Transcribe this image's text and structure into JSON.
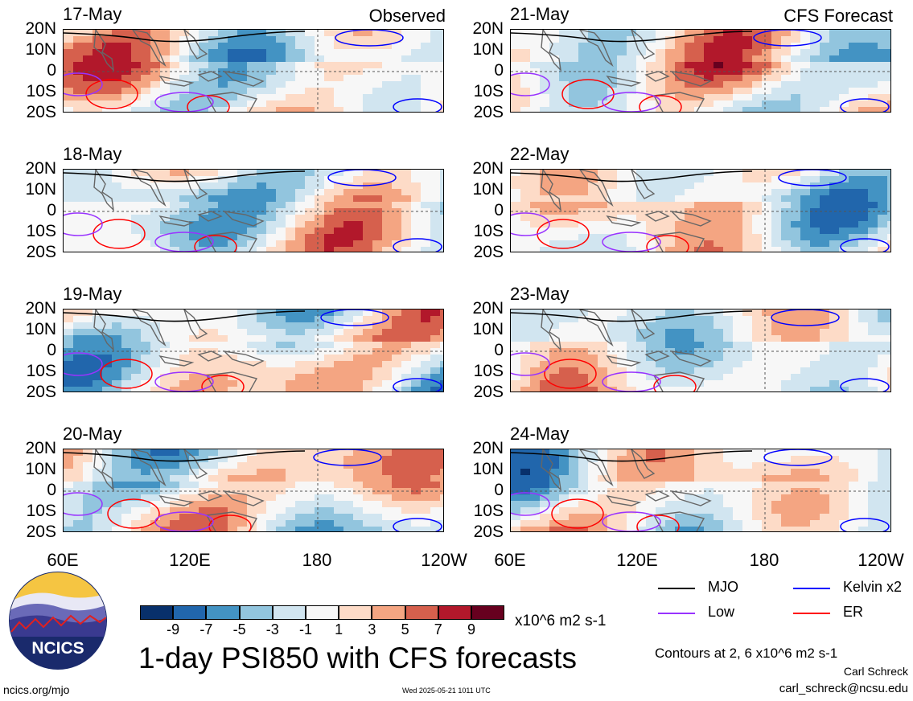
{
  "titles": {
    "observed": "Observed",
    "forecast": "CFS Forecast",
    "main": "1-day PSI850 with CFS forecasts",
    "contours": "Contours at 2, 6 x10^6 m2 s-1",
    "units": "x10^6 m2 s-1",
    "author": "Carl Schreck",
    "email": "carl_schreck@ncsu.edu",
    "site": "ncics.org/mjo",
    "timestamp": "Wed 2025-05-21 1011 UTC",
    "logo_text": "NCICS"
  },
  "colors": {
    "negative": [
      "#08306b",
      "#2166ac",
      "#4393c3",
      "#92c5de",
      "#d1e5f0"
    ],
    "neutral": "#f7f7f7",
    "positive": [
      "#fddbc7",
      "#f4a582",
      "#d6604d",
      "#b2182b",
      "#67001f"
    ],
    "mjo": "#000000",
    "kelvin": "#0000ff",
    "low": "#9933ff",
    "er": "#ff0000",
    "land": "#666666"
  },
  "chart_data": {
    "type": "heatmap",
    "variable": "PSI850",
    "xlim": [
      "60E",
      "120W"
    ],
    "ylim": [
      "20S",
      "20N"
    ],
    "x_ticks": [
      "60E",
      "120E",
      "180",
      "120W"
    ],
    "y_ticks": [
      "20N",
      "10N",
      "0",
      "10S",
      "20S"
    ],
    "colorbar_levels": [
      "-9",
      "-7",
      "-5",
      "-3",
      "-1",
      "1",
      "3",
      "5",
      "7",
      "9"
    ],
    "contour_levels": [
      2,
      6
    ],
    "legend": [
      {
        "name": "MJO",
        "color": "#000000"
      },
      {
        "name": "Kelvin x2",
        "color": "#0000ff"
      },
      {
        "name": "Low",
        "color": "#9933ff"
      },
      {
        "name": "ER",
        "color": "#ff0000"
      }
    ],
    "panels": [
      {
        "date": "17-May",
        "column": "Observed"
      },
      {
        "date": "18-May",
        "column": "Observed"
      },
      {
        "date": "19-May",
        "column": "Observed"
      },
      {
        "date": "20-May",
        "column": "Observed"
      },
      {
        "date": "21-May",
        "column": "CFS Forecast"
      },
      {
        "date": "22-May",
        "column": "CFS Forecast"
      },
      {
        "date": "23-May",
        "column": "CFS Forecast"
      },
      {
        "date": "24-May",
        "column": "CFS Forecast"
      }
    ]
  }
}
